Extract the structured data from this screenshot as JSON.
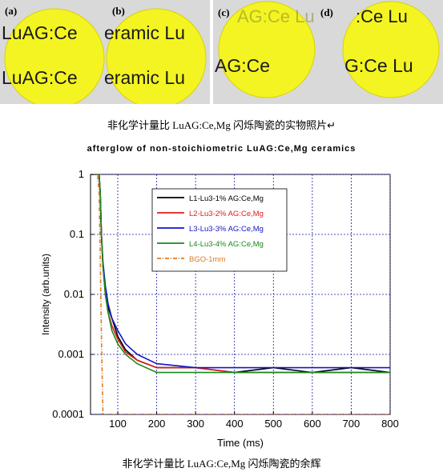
{
  "photos": {
    "left": {
      "panels": [
        {
          "label": "(a)",
          "text_top": "LuAG:Ce",
          "text_bottom": "LuAG:Ce"
        },
        {
          "label": "(b)",
          "text_top": "eramic Lu",
          "text_bottom": "eramic Lu"
        }
      ]
    },
    "right": {
      "panels": [
        {
          "label": "(c)",
          "text_top": "AG:Ce Lu",
          "text_bottom": "AG:Ce"
        },
        {
          "label": "(d)",
          "text_top": ":Ce Lu",
          "text_bottom": "G:Ce Lu"
        }
      ]
    },
    "caption": "非化学计量比 LuAG:Ce,Mg 闪烁陶瓷的实物照片↵"
  },
  "colors": {
    "ceramic": "#f4f423",
    "photo_bg": "#d9d9d9",
    "L1": "#000000",
    "L2": "#e01b1b",
    "L3": "#1414c8",
    "L4": "#1a8a1a",
    "BGO": "#e07a20"
  },
  "chart_data": {
    "type": "line",
    "title": "afterglow of non-stoichiometric LuAG:Ce,Mg ceramics",
    "xlabel": "Time (ms)",
    "ylabel": "Intensity (arb.units)",
    "xlim": [
      30,
      800
    ],
    "ylim": [
      0.0001,
      1
    ],
    "yscale": "log",
    "xticks": [
      100,
      200,
      300,
      400,
      500,
      600,
      700,
      800
    ],
    "yticks": [
      0.0001,
      0.001,
      0.01,
      0.1,
      1
    ],
    "ytick_labels": [
      "0.0001",
      "0.001",
      "0.01",
      "0.1",
      "1"
    ],
    "grid": true,
    "legend_position": "top-right",
    "series": [
      {
        "name": "L1-Lu3-1% AG:Ce,Mg",
        "color": "#000000",
        "x": [
          30,
          48,
          52,
          55,
          58,
          62,
          68,
          75,
          85,
          100,
          120,
          150,
          200,
          300,
          400,
          500,
          600,
          700,
          800
        ],
        "y": [
          1,
          1,
          1,
          0.5,
          0.1,
          0.03,
          0.012,
          0.006,
          0.004,
          0.002,
          0.0012,
          0.0008,
          0.0006,
          0.0006,
          0.0005,
          0.0006,
          0.0005,
          0.0006,
          0.0005
        ]
      },
      {
        "name": "L2-Lu3-2% AG:Ce,Mg",
        "color": "#e01b1b",
        "x": [
          30,
          48,
          52,
          55,
          58,
          62,
          68,
          75,
          85,
          100,
          120,
          150,
          200,
          300,
          400,
          500,
          600,
          700,
          800
        ],
        "y": [
          1,
          1,
          1,
          0.5,
          0.1,
          0.03,
          0.01,
          0.005,
          0.003,
          0.0018,
          0.0011,
          0.0008,
          0.0006,
          0.0006,
          0.0005,
          0.0005,
          0.0005,
          0.0005,
          0.0005
        ]
      },
      {
        "name": "L3-Lu3-3% AG:Ce,Mg",
        "color": "#1414c8",
        "x": [
          30,
          48,
          52,
          55,
          58,
          62,
          68,
          75,
          85,
          100,
          120,
          150,
          200,
          300,
          400,
          500,
          600,
          700,
          800
        ],
        "y": [
          1,
          1,
          1,
          0.5,
          0.1,
          0.035,
          0.014,
          0.007,
          0.004,
          0.0025,
          0.0015,
          0.001,
          0.0007,
          0.0006,
          0.0006,
          0.0006,
          0.0006,
          0.0006,
          0.0006
        ]
      },
      {
        "name": "L4-Lu3-4% AG:Ce,Mg",
        "color": "#1a8a1a",
        "x": [
          30,
          48,
          52,
          55,
          58,
          62,
          68,
          75,
          85,
          100,
          120,
          150,
          200,
          300,
          400,
          500,
          600,
          700,
          800
        ],
        "y": [
          1,
          1,
          1,
          0.5,
          0.1,
          0.03,
          0.01,
          0.005,
          0.0025,
          0.0015,
          0.001,
          0.0007,
          0.0005,
          0.0005,
          0.0005,
          0.0005,
          0.0005,
          0.0005,
          0.0005
        ]
      },
      {
        "name": "BGO-1mm",
        "color": "#e07a20",
        "x": [
          30,
          40,
          48,
          52,
          55,
          58,
          62,
          800
        ],
        "y": [
          1,
          1,
          1,
          0.5,
          0.05,
          0.002,
          0.0001,
          0.0001
        ]
      }
    ]
  },
  "chart_caption": "非化学计量比 LuAG:Ce,Mg 闪烁陶瓷的余辉"
}
